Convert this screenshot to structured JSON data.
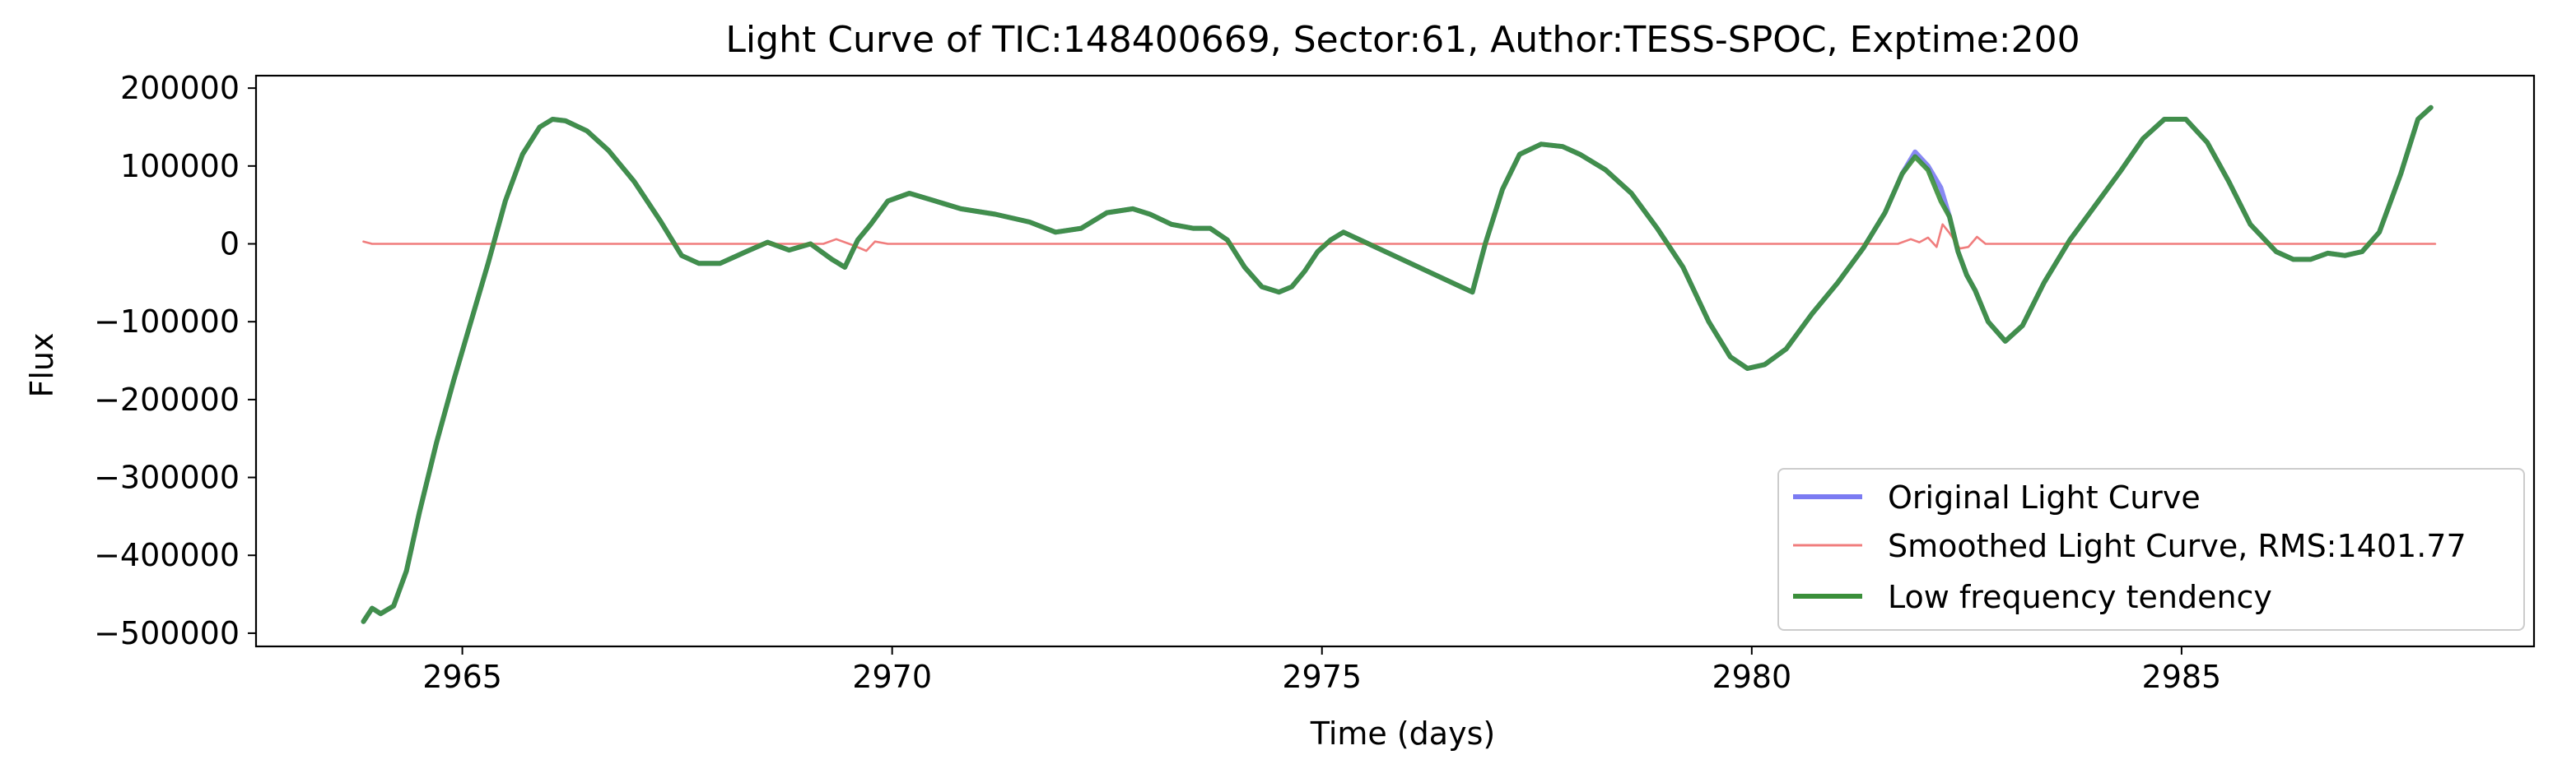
{
  "chart_data": {
    "type": "line",
    "title": "Light Curve of TIC:148400669, Sector:61, Author:TESS-SPOC, Exptime:200",
    "xlabel": "Time (days)",
    "ylabel": "Flux",
    "xlim": [
      2962.6,
      2989.1
    ],
    "ylim": [
      -517000,
      216000
    ],
    "x_ticks": [
      2965,
      2970,
      2975,
      2980,
      2985
    ],
    "x_tick_labels": [
      "2965",
      "2970",
      "2975",
      "2980",
      "2985"
    ],
    "y_ticks": [
      200000,
      100000,
      0,
      -100000,
      -200000,
      -300000,
      -400000,
      -500000
    ],
    "y_tick_labels": [
      "200000",
      "100000",
      "0",
      "−100000",
      "−200000",
      "−300000",
      "−400000",
      "−500000"
    ],
    "grid": false,
    "legend_position": "lower-right",
    "series": [
      {
        "name": "Original Light Curve",
        "color": "#7b7bf2",
        "x": [
          2963.85,
          2963.95,
          2964.05,
          2964.2,
          2964.35,
          2964.5,
          2964.7,
          2964.9,
          2965.1,
          2965.3,
          2965.5,
          2965.7,
          2965.9,
          2966.05,
          2966.2,
          2966.45,
          2966.7,
          2967.0,
          2967.3,
          2967.55,
          2967.75,
          2968.0,
          2968.3,
          2968.55,
          2968.8,
          2969.05,
          2969.3,
          2969.45,
          2969.6,
          2969.75,
          2969.95,
          2970.2,
          2970.5,
          2970.8,
          2971.2,
          2971.6,
          2971.9,
          2972.2,
          2972.5,
          2972.8,
          2973.0,
          2973.25,
          2973.5,
          2973.7,
          2973.9,
          2974.1,
          2974.3,
          2974.5,
          2974.65,
          2974.8,
          2974.95,
          2975.1,
          2975.25,
          2976.75,
          2976.9,
          2977.1,
          2977.3,
          2977.55,
          2977.8,
          2978.0,
          2978.3,
          2978.6,
          2978.9,
          2979.2,
          2979.5,
          2979.75,
          2979.95,
          2980.15,
          2980.4,
          2980.7,
          2981.0,
          2981.3,
          2981.55,
          2981.75,
          2981.9,
          2982.05,
          2982.2,
          2982.3,
          2982.4,
          2982.5,
          2982.6,
          2982.75,
          2982.95,
          2983.15,
          2983.4,
          2983.7,
          2984.0,
          2984.3,
          2984.55,
          2984.8,
          2985.05,
          2985.3,
          2985.55,
          2985.8,
          2986.1,
          2986.3,
          2986.5,
          2986.7,
          2986.9,
          2987.1,
          2987.3,
          2987.55,
          2987.75,
          2987.9
        ],
        "values": [
          -485000,
          -468000,
          -475000,
          -465000,
          -420000,
          -345000,
          -255000,
          -175000,
          -100000,
          -25000,
          55000,
          115000,
          150000,
          160000,
          158000,
          145000,
          120000,
          80000,
          30000,
          -15000,
          -25000,
          -25000,
          -10000,
          2000,
          -8000,
          0,
          -20000,
          -30000,
          5000,
          25000,
          55000,
          65000,
          55000,
          45000,
          38000,
          28000,
          15000,
          20000,
          40000,
          45000,
          38000,
          25000,
          20000,
          20000,
          5000,
          -30000,
          -55000,
          -62000,
          -55000,
          -35000,
          -10000,
          5000,
          15000,
          -62000,
          0,
          70000,
          115000,
          128000,
          125000,
          115000,
          95000,
          65000,
          20000,
          -30000,
          -100000,
          -145000,
          -160000,
          -155000,
          -135000,
          -90000,
          -50000,
          -5000,
          40000,
          90000,
          118000,
          100000,
          72000,
          35000,
          -10000,
          -40000,
          -60000,
          -100000,
          -125000,
          -105000,
          -50000,
          5000,
          50000,
          95000,
          135000,
          160000,
          160000,
          130000,
          80000,
          25000,
          -10000,
          -20000,
          -20000,
          -12000,
          -15000,
          -10000,
          15000,
          90000,
          160000,
          175000
        ]
      },
      {
        "name": "Smoothed Light Curve, RMS:1401.77",
        "color": "#f07d7d",
        "x": [
          2963.85,
          2963.95,
          2964.1,
          2969.2,
          2969.35,
          2969.55,
          2969.7,
          2969.8,
          2969.95,
          2981.7,
          2981.85,
          2981.95,
          2982.05,
          2982.15,
          2982.22,
          2982.3,
          2982.42,
          2982.52,
          2982.62,
          2982.72,
          2987.95
        ],
        "values": [
          3000,
          0,
          0,
          0,
          6000,
          -2000,
          -9000,
          3000,
          0,
          0,
          6000,
          2000,
          8000,
          -4000,
          25000,
          14000,
          -6000,
          -4000,
          9000,
          0,
          0
        ]
      },
      {
        "name": "Low frequency tendency",
        "color": "#3a8f3a",
        "x": [
          2963.85,
          2963.95,
          2964.05,
          2964.2,
          2964.35,
          2964.5,
          2964.7,
          2964.9,
          2965.1,
          2965.3,
          2965.5,
          2965.7,
          2965.9,
          2966.05,
          2966.2,
          2966.45,
          2966.7,
          2967.0,
          2967.3,
          2967.55,
          2967.75,
          2968.0,
          2968.3,
          2968.55,
          2968.8,
          2969.05,
          2969.3,
          2969.45,
          2969.6,
          2969.75,
          2969.95,
          2970.2,
          2970.5,
          2970.8,
          2971.2,
          2971.6,
          2971.9,
          2972.2,
          2972.5,
          2972.8,
          2973.0,
          2973.25,
          2973.5,
          2973.7,
          2973.9,
          2974.1,
          2974.3,
          2974.5,
          2974.65,
          2974.8,
          2974.95,
          2975.1,
          2975.25,
          2976.75,
          2976.9,
          2977.1,
          2977.3,
          2977.55,
          2977.8,
          2978.0,
          2978.3,
          2978.6,
          2978.9,
          2979.2,
          2979.5,
          2979.75,
          2979.95,
          2980.15,
          2980.4,
          2980.7,
          2981.0,
          2981.3,
          2981.55,
          2981.75,
          2981.9,
          2982.05,
          2982.2,
          2982.3,
          2982.4,
          2982.5,
          2982.6,
          2982.75,
          2982.95,
          2983.15,
          2983.4,
          2983.7,
          2984.0,
          2984.3,
          2984.55,
          2984.8,
          2985.05,
          2985.3,
          2985.55,
          2985.8,
          2986.1,
          2986.3,
          2986.5,
          2986.7,
          2986.9,
          2987.1,
          2987.3,
          2987.55,
          2987.75,
          2987.9
        ],
        "values": [
          -485000,
          -468000,
          -475000,
          -465000,
          -420000,
          -345000,
          -255000,
          -175000,
          -100000,
          -25000,
          55000,
          115000,
          150000,
          160000,
          158000,
          145000,
          120000,
          80000,
          30000,
          -15000,
          -25000,
          -25000,
          -10000,
          2000,
          -8000,
          0,
          -20000,
          -30000,
          5000,
          25000,
          55000,
          65000,
          55000,
          45000,
          38000,
          28000,
          15000,
          20000,
          40000,
          45000,
          38000,
          25000,
          20000,
          20000,
          5000,
          -30000,
          -55000,
          -62000,
          -55000,
          -35000,
          -10000,
          5000,
          15000,
          -62000,
          0,
          70000,
          115000,
          128000,
          125000,
          115000,
          95000,
          65000,
          20000,
          -30000,
          -100000,
          -145000,
          -160000,
          -155000,
          -135000,
          -90000,
          -50000,
          -5000,
          40000,
          90000,
          112000,
          95000,
          55000,
          35000,
          -10000,
          -40000,
          -60000,
          -100000,
          -125000,
          -105000,
          -50000,
          5000,
          50000,
          95000,
          135000,
          160000,
          160000,
          130000,
          80000,
          25000,
          -10000,
          -20000,
          -20000,
          -12000,
          -15000,
          -10000,
          15000,
          90000,
          160000,
          175000
        ]
      }
    ]
  }
}
